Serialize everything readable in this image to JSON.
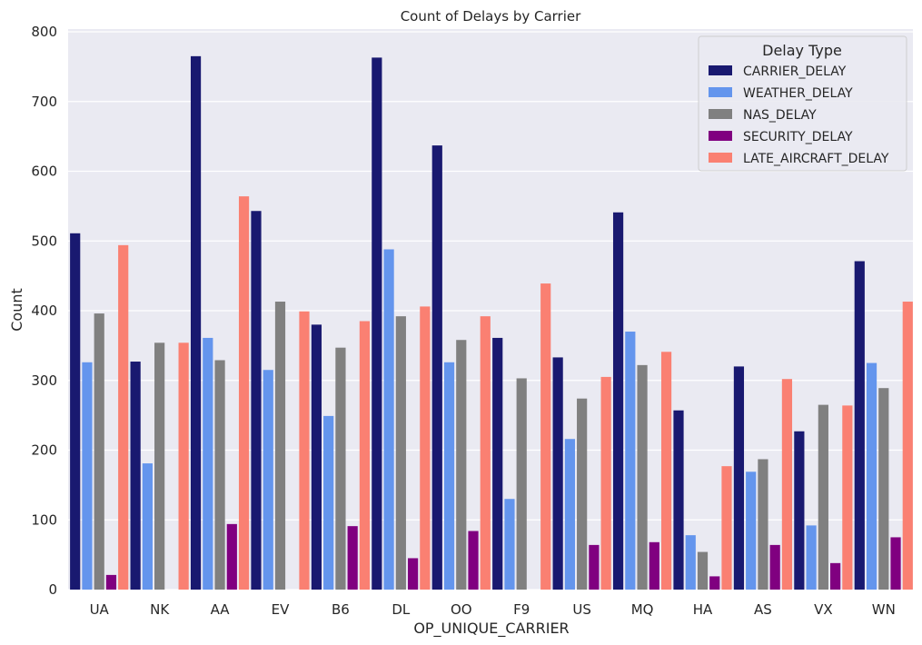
{
  "chart_data": {
    "type": "bar",
    "title": "Count of Delays by Carrier",
    "xlabel": "OP_UNIQUE_CARRIER",
    "ylabel": "Count",
    "ylim": [
      0,
      800
    ],
    "yticks": [
      0,
      100,
      200,
      300,
      400,
      500,
      600,
      700,
      800
    ],
    "grid": true,
    "legend": {
      "title": "Delay Type",
      "placement": "top-right"
    },
    "categories": [
      "UA",
      "NK",
      "AA",
      "EV",
      "B6",
      "DL",
      "OO",
      "F9",
      "US",
      "MQ",
      "HA",
      "AS",
      "VX",
      "WN"
    ],
    "series": [
      {
        "name": "CARRIER_DELAY",
        "color": "#191970",
        "values": [
          511,
          327,
          765,
          543,
          380,
          763,
          637,
          361,
          333,
          541,
          257,
          320,
          227,
          471
        ]
      },
      {
        "name": "WEATHER_DELAY",
        "color": "#6495ed",
        "values": [
          326,
          181,
          361,
          315,
          249,
          488,
          326,
          130,
          216,
          370,
          78,
          169,
          92,
          325
        ]
      },
      {
        "name": "NAS_DELAY",
        "color": "#808080",
        "values": [
          396,
          354,
          329,
          413,
          347,
          392,
          358,
          303,
          274,
          322,
          54,
          187,
          265,
          289
        ]
      },
      {
        "name": "SECURITY_DELAY",
        "color": "#800080",
        "values": [
          21,
          null,
          94,
          null,
          91,
          45,
          84,
          null,
          64,
          68,
          19,
          64,
          38,
          75
        ]
      },
      {
        "name": "LATE_AIRCRAFT_DELAY",
        "color": "#fa8072",
        "values": [
          494,
          354,
          564,
          399,
          385,
          406,
          392,
          439,
          305,
          341,
          177,
          302,
          264,
          413
        ]
      }
    ]
  }
}
